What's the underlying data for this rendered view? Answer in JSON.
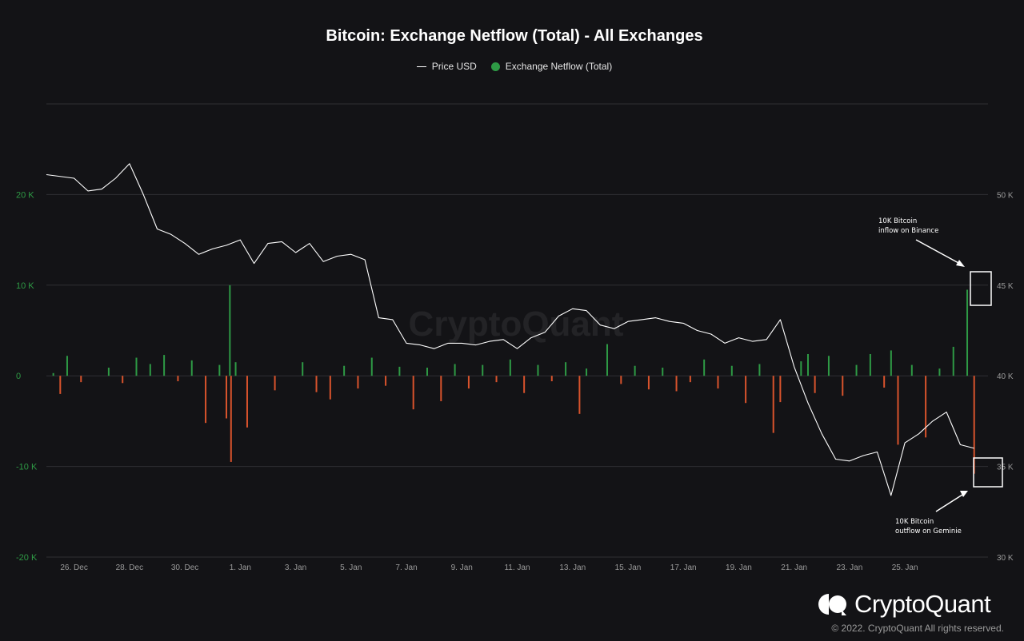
{
  "chart_data": {
    "type": "bar+line",
    "title": "Bitcoin: Exchange Netflow (Total) - All Exchanges",
    "legend": {
      "position": "top-center",
      "items": [
        {
          "name": "Price USD",
          "color": "#ffffff",
          "marker": "line"
        },
        {
          "name": "Exchange Netflow (Total)",
          "color": "#2e9a45",
          "marker": "dot"
        }
      ]
    },
    "x_ticks": [
      "26. Dec",
      "28. Dec",
      "30. Dec",
      "1. Jan",
      "3. Jan",
      "5. Jan",
      "7. Jan",
      "9. Jan",
      "11. Jan",
      "13. Jan",
      "15. Jan",
      "17. Jan",
      "19. Jan",
      "21. Jan",
      "23. Jan",
      "25. Jan"
    ],
    "left_axis": {
      "label": "",
      "ticks": [
        "20 K",
        "10 K",
        "0",
        "-10 K",
        "-20 K"
      ],
      "tick_values": [
        20000,
        10000,
        0,
        -10000,
        -20000
      ],
      "range": [
        -20000,
        30000
      ],
      "color": "#2e9a45"
    },
    "right_axis": {
      "label": "",
      "ticks": [
        "50 K",
        "45 K",
        "40 K",
        "35 K",
        "30 K"
      ],
      "tick_values": [
        50000,
        45000,
        40000,
        35000,
        30000
      ],
      "range": [
        30000,
        55000
      ]
    },
    "grid": true,
    "series": [
      {
        "name": "Price USD",
        "axis": "right",
        "color": "#ffffff",
        "points": [
          [
            "2021-12-25",
            51100
          ],
          [
            "2021-12-26",
            50900
          ],
          [
            "2021-12-26T12",
            50200
          ],
          [
            "2021-12-27",
            50300
          ],
          [
            "2021-12-27T12",
            50900
          ],
          [
            "2021-12-28",
            51700
          ],
          [
            "2021-12-28T12",
            50000
          ],
          [
            "2021-12-29",
            48100
          ],
          [
            "2021-12-29T12",
            47800
          ],
          [
            "2021-12-30",
            47300
          ],
          [
            "2021-12-30T12",
            46700
          ],
          [
            "2021-12-31",
            47000
          ],
          [
            "2021-12-31T12",
            47200
          ],
          [
            "2022-01-01",
            47500
          ],
          [
            "2022-01-01T12",
            46200
          ],
          [
            "2022-01-02",
            47300
          ],
          [
            "2022-01-02T12",
            47400
          ],
          [
            "2022-01-03",
            46800
          ],
          [
            "2022-01-03T12",
            47300
          ],
          [
            "2022-01-04",
            46300
          ],
          [
            "2022-01-04T12",
            46600
          ],
          [
            "2022-01-05",
            46700
          ],
          [
            "2022-01-05T12",
            46400
          ],
          [
            "2022-01-06",
            43200
          ],
          [
            "2022-01-06T12",
            43100
          ],
          [
            "2022-01-07",
            41800
          ],
          [
            "2022-01-07T12",
            41700
          ],
          [
            "2022-01-08",
            41500
          ],
          [
            "2022-01-08T12",
            41800
          ],
          [
            "2022-01-09",
            41800
          ],
          [
            "2022-01-09T12",
            41700
          ],
          [
            "2022-01-10",
            41900
          ],
          [
            "2022-01-10T12",
            42000
          ],
          [
            "2022-01-11",
            41500
          ],
          [
            "2022-01-11T12",
            42100
          ],
          [
            "2022-01-12",
            42400
          ],
          [
            "2022-01-12T12",
            43300
          ],
          [
            "2022-01-13",
            43700
          ],
          [
            "2022-01-13T12",
            43600
          ],
          [
            "2022-01-14",
            42800
          ],
          [
            "2022-01-14T12",
            42600
          ],
          [
            "2022-01-15",
            43000
          ],
          [
            "2022-01-15T12",
            43100
          ],
          [
            "2022-01-16",
            43200
          ],
          [
            "2022-01-16T12",
            43000
          ],
          [
            "2022-01-17",
            42900
          ],
          [
            "2022-01-17T12",
            42500
          ],
          [
            "2022-01-18",
            42300
          ],
          [
            "2022-01-18T12",
            41800
          ],
          [
            "2022-01-19",
            42100
          ],
          [
            "2022-01-19T12",
            41900
          ],
          [
            "2022-01-20",
            42000
          ],
          [
            "2022-01-20T12",
            43100
          ],
          [
            "2022-01-21",
            40500
          ],
          [
            "2022-01-21T12",
            38500
          ],
          [
            "2022-01-22",
            36800
          ],
          [
            "2022-01-22T12",
            35400
          ],
          [
            "2022-01-23",
            35300
          ],
          [
            "2022-01-23T12",
            35600
          ],
          [
            "2022-01-24",
            35800
          ],
          [
            "2022-01-24T12",
            33400
          ],
          [
            "2022-01-25",
            36300
          ],
          [
            "2022-01-25T12",
            36800
          ],
          [
            "2022-01-26",
            37500
          ],
          [
            "2022-01-26T12",
            38000
          ],
          [
            "2022-01-27",
            36200
          ],
          [
            "2022-01-27T12",
            36000
          ]
        ]
      },
      {
        "name": "Exchange Netflow (Total)",
        "axis": "left",
        "color_positive": "#2e9a45",
        "color_negative": "#d8532c",
        "points": [
          [
            "2021-12-25T06",
            300
          ],
          [
            "2021-12-25T12",
            -2000
          ],
          [
            "2021-12-25T18",
            2200
          ],
          [
            "2021-12-26T06",
            -700
          ],
          [
            "2021-12-27T06",
            900
          ],
          [
            "2021-12-27T18",
            -800
          ],
          [
            "2021-12-28T06",
            2000
          ],
          [
            "2021-12-28T18",
            1300
          ],
          [
            "2021-12-29T06",
            2300
          ],
          [
            "2021-12-29T18",
            -600
          ],
          [
            "2021-12-30T06",
            1700
          ],
          [
            "2021-12-30T18",
            -5200
          ],
          [
            "2021-12-31T06",
            1200
          ],
          [
            "2021-12-31T12",
            -4700
          ],
          [
            "2021-12-31T15",
            10000
          ],
          [
            "2021-12-31T16",
            -9500
          ],
          [
            "2021-12-31T20",
            1500
          ],
          [
            "2022-01-01T06",
            -5700
          ],
          [
            "2022-01-02T06",
            -1600
          ],
          [
            "2022-01-03T06",
            1500
          ],
          [
            "2022-01-03T18",
            -1800
          ],
          [
            "2022-01-04T06",
            -2600
          ],
          [
            "2022-01-04T18",
            1100
          ],
          [
            "2022-01-05T06",
            -1400
          ],
          [
            "2022-01-05T18",
            2000
          ],
          [
            "2022-01-06T06",
            -1100
          ],
          [
            "2022-01-06T18",
            1000
          ],
          [
            "2022-01-07T06",
            -3700
          ],
          [
            "2022-01-07T18",
            900
          ],
          [
            "2022-01-08T06",
            -2800
          ],
          [
            "2022-01-08T18",
            1300
          ],
          [
            "2022-01-09T06",
            -1400
          ],
          [
            "2022-01-09T18",
            1200
          ],
          [
            "2022-01-10T06",
            -700
          ],
          [
            "2022-01-10T18",
            1800
          ],
          [
            "2022-01-11T06",
            -1900
          ],
          [
            "2022-01-11T18",
            1200
          ],
          [
            "2022-01-12T06",
            -600
          ],
          [
            "2022-01-12T18",
            1500
          ],
          [
            "2022-01-13T06",
            -4200
          ],
          [
            "2022-01-13T12",
            800
          ],
          [
            "2022-01-14T06",
            3500
          ],
          [
            "2022-01-14T18",
            -900
          ],
          [
            "2022-01-15T06",
            1100
          ],
          [
            "2022-01-15T18",
            -1500
          ],
          [
            "2022-01-16T06",
            900
          ],
          [
            "2022-01-16T18",
            -1700
          ],
          [
            "2022-01-17T06",
            -700
          ],
          [
            "2022-01-17T18",
            1800
          ],
          [
            "2022-01-18T06",
            -1400
          ],
          [
            "2022-01-18T18",
            1100
          ],
          [
            "2022-01-19T06",
            -3000
          ],
          [
            "2022-01-19T18",
            1300
          ],
          [
            "2022-01-20T06",
            -6300
          ],
          [
            "2022-01-20T12",
            -2900
          ],
          [
            "2022-01-21T06",
            1600
          ],
          [
            "2022-01-21T12",
            2400
          ],
          [
            "2022-01-21T18",
            -1900
          ],
          [
            "2022-01-22T06",
            2200
          ],
          [
            "2022-01-22T18",
            -2200
          ],
          [
            "2022-01-23T06",
            1200
          ],
          [
            "2022-01-23T18",
            2400
          ],
          [
            "2022-01-24T06",
            -1300
          ],
          [
            "2022-01-24T12",
            2800
          ],
          [
            "2022-01-24T18",
            -7600
          ],
          [
            "2022-01-25T06",
            1200
          ],
          [
            "2022-01-25T18",
            -6800
          ],
          [
            "2022-01-26T06",
            800
          ],
          [
            "2022-01-26T18",
            3200
          ],
          [
            "2022-01-27T06",
            9500
          ],
          [
            "2022-01-27T12",
            -10800
          ]
        ]
      }
    ],
    "annotations": [
      {
        "text": "10K Bitcoin\ninflow on Binance"
      },
      {
        "text": "10K Bitcoin\noutflow on Geminie"
      }
    ]
  },
  "watermark": "CryptoQuant",
  "brand": "CryptoQuant",
  "copyright": "© 2022. CryptoQuant All rights reserved."
}
